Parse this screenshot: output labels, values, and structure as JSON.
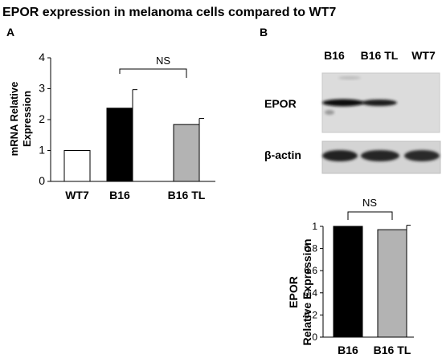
{
  "figure_title": "EPOR expression in melanoma cells compared to WT7",
  "panel_a": {
    "label": "A",
    "ylabel_line1": "mRNA Relative",
    "ylabel_line2": "Expression",
    "significance": "NS"
  },
  "panel_b": {
    "label": "B",
    "blot_lanes": [
      "B16",
      "B16 TL",
      "WT7"
    ],
    "blot_rows": [
      "EPOR",
      "β-actin"
    ],
    "ylabel_line1": "EPOR",
    "ylabel_line2": "Relative Expression",
    "significance": "NS"
  },
  "colors": {
    "black": "#000000",
    "grey": "#b3b3b3",
    "white": "#ffffff",
    "blot_bg": "#d9d9d9"
  },
  "chart_data": [
    {
      "type": "bar",
      "title": "",
      "categories": [
        "WT7",
        "B16",
        "B16 TL"
      ],
      "values": [
        1.0,
        2.37,
        1.84
      ],
      "errors": [
        0,
        0.6,
        0.2
      ],
      "bar_colors": [
        "#ffffff",
        "#000000",
        "#b3b3b3"
      ],
      "ylim": [
        0,
        4
      ],
      "yticks": [
        "0",
        "1",
        "2",
        "3",
        "4"
      ],
      "ylabel": "mRNA Relative Expression",
      "grid": false
    },
    {
      "type": "bar",
      "title": "",
      "categories": [
        "B16",
        "B16 TL"
      ],
      "values": [
        1.0,
        0.97
      ],
      "errors": [
        0,
        0.04
      ],
      "bar_colors": [
        "#000000",
        "#b3b3b3"
      ],
      "ylim": [
        0,
        1
      ],
      "yticks": [
        "0",
        "0.2",
        "0.4",
        "0.6",
        "0.8",
        "1"
      ],
      "ylabel": "EPOR Relative Expression",
      "grid": false
    }
  ]
}
